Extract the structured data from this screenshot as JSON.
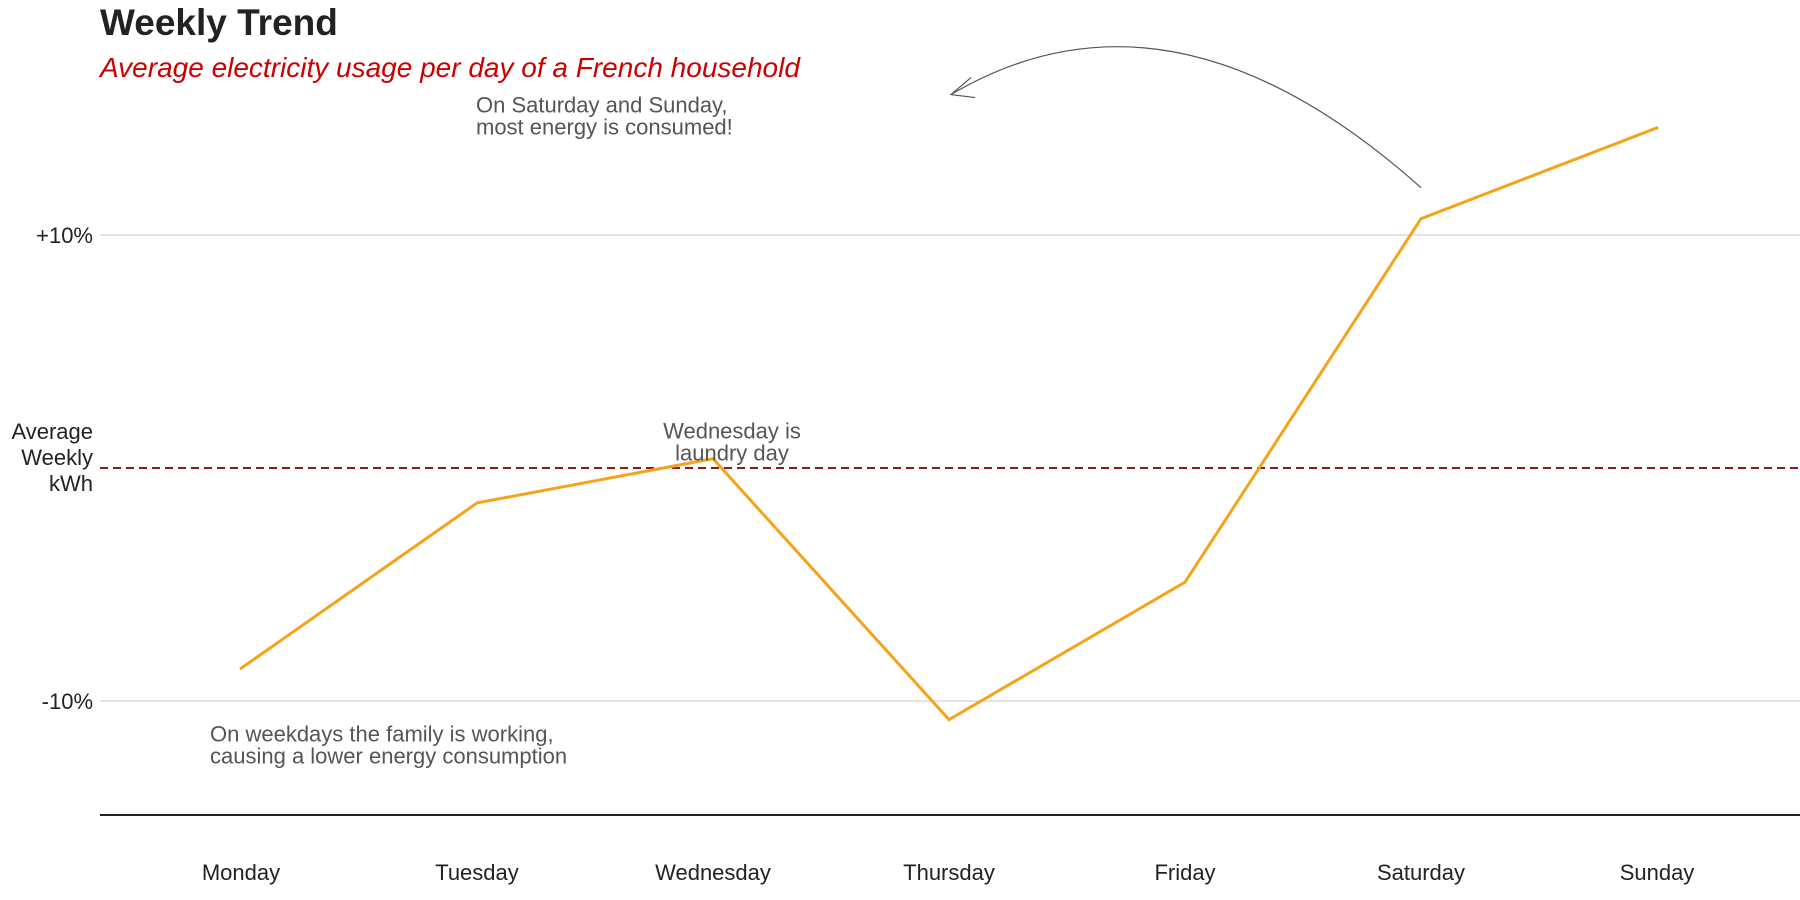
{
  "chart_data": {
    "type": "line",
    "title": "Weekly Trend",
    "subtitle": "Average electricity usage per day of a French household",
    "categories": [
      "Monday",
      "Tuesday",
      "Wednesday",
      "Thursday",
      "Friday",
      "Saturday",
      "Sunday"
    ],
    "values": [
      -8.6,
      -1.5,
      0.4,
      -10.8,
      -4.9,
      10.7,
      14.6
    ],
    "y_unit": "% vs. average weekly kWh",
    "ylim": [
      -15,
      18
    ],
    "y_ticks": [
      {
        "value": 10,
        "label": "+10%"
      },
      {
        "value": -10,
        "label": "-10%"
      }
    ],
    "reference_line": {
      "value": 0,
      "label_lines": [
        "Average",
        "Weekly",
        "kWh"
      ],
      "color": "#8b1a1a",
      "style": "dashed"
    },
    "line_color": "#f5a31a",
    "grid": "horizontal",
    "legend": "none",
    "annotations": [
      {
        "id": "weekend",
        "lines": [
          "On Saturday and Sunday,",
          "most energy is consumed!"
        ],
        "anchor": "start",
        "day": "Wednesday",
        "value": 16.2,
        "arrow": true
      },
      {
        "id": "wednesday",
        "lines": [
          "Wednesday is",
          "laundry day"
        ],
        "anchor": "middle",
        "day": "Wednesday",
        "value": 2.2,
        "arrow": false
      },
      {
        "id": "weekdays",
        "lines": [
          "On weekdays the family is working,",
          "causing a lower energy consumption"
        ],
        "anchor": "start",
        "day": "Monday",
        "value": -10.8,
        "arrow": false
      }
    ],
    "colors": {
      "grid": "#d3d3d3",
      "axis": "#222222",
      "title": "#222222",
      "subtitle": "#cc0000",
      "annotation": "#555555",
      "arrow": "#555555"
    }
  }
}
